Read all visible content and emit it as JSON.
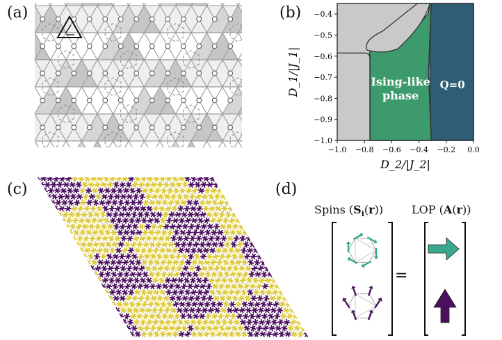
{
  "panels": {
    "a": {
      "label": "(a)"
    },
    "b": {
      "label": "(b)"
    },
    "c": {
      "label": "(c)"
    },
    "d": {
      "label": "(d)"
    }
  },
  "chart_data": {
    "type": "phase-diagram",
    "xlabel": "D_2/|J_2|",
    "ylabel": "D_1/|J_1|",
    "xlim": [
      -1.0,
      0.0
    ],
    "ylim": [
      -1.0,
      -0.35
    ],
    "xticks": [
      "−1.0",
      "−0.8",
      "−0.6",
      "−0.4",
      "−0.2",
      "0.0"
    ],
    "yticks": [
      "−0.4",
      "−0.5",
      "−0.6",
      "−0.7",
      "−0.8",
      "−0.9",
      "−1.0"
    ],
    "regions": [
      {
        "name": "",
        "color": "#c9c9c9"
      },
      {
        "name": "Ising-like phase",
        "lines": [
          "Ising-like",
          "phase"
        ],
        "color": "#3d9a6c"
      },
      {
        "name": "Q=0",
        "color": "#2f5d75"
      }
    ],
    "boundaries": {
      "gray_green_x": -0.76,
      "green_blue_x": -0.31,
      "gray_horizontal_y": -0.585
    }
  },
  "colors": {
    "gray_phase": "#c9c9c9",
    "ising_phase": "#3d9a6c",
    "q0_phase": "#2f5d75",
    "yellow_spin": "#dcc93a",
    "purple_spin": "#4b0f5e",
    "teal_arrow": "#3aa88a"
  },
  "panel_d": {
    "spins_label": "Spins (S_i(r))",
    "lop_label": "LOP (A(r))",
    "equals": "="
  }
}
